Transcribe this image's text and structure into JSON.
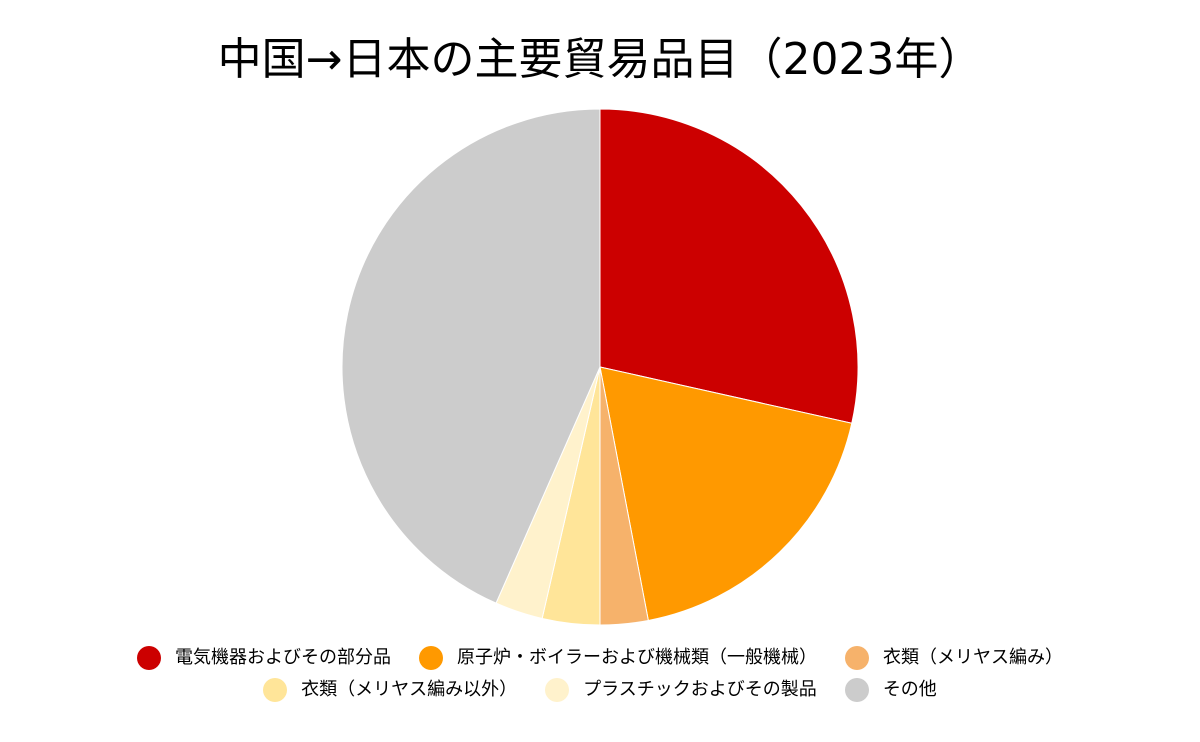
{
  "chart_data": {
    "type": "pie",
    "title": "中国→日本の主要貿易品目（2023年）",
    "slices": [
      {
        "label": "電気機器およびその部分品",
        "value": 28.5,
        "color": "#cc0000"
      },
      {
        "label": "原子炉・ボイラーおよび機械類（一般機械）",
        "value": 18.5,
        "color": "#ff9900"
      },
      {
        "label": "衣類（メリヤス編み）",
        "value": 3.0,
        "color": "#f6b26b"
      },
      {
        "label": "衣類（メリヤス編み以外）",
        "value": 3.6,
        "color": "#ffe599"
      },
      {
        "label": "プラスチックおよびその製品",
        "value": 3.0,
        "color": "#fff2cc"
      },
      {
        "label": "その他",
        "value": 43.4,
        "color": "#cccccc"
      }
    ],
    "start_angle_deg": 0,
    "direction": "clockwise",
    "legend_position": "bottom"
  }
}
